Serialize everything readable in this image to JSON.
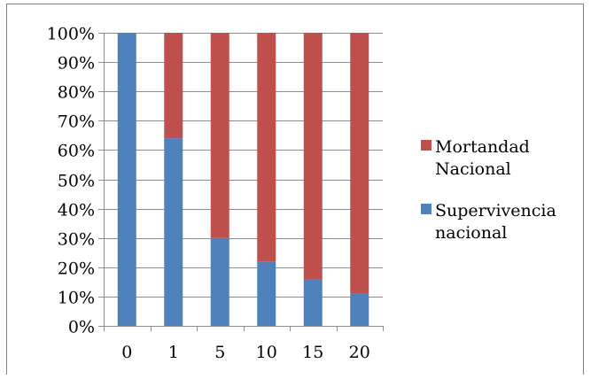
{
  "chart_data": {
    "type": "bar",
    "stacked": true,
    "percent_stacked": true,
    "categories": [
      "0",
      "1",
      "5",
      "10",
      "15",
      "20"
    ],
    "series": [
      {
        "name": "Supervivencia nacional",
        "legend_lines": [
          "Supervivencia",
          "nacional"
        ],
        "color": "#4F81BD",
        "values": [
          100,
          64,
          30,
          22,
          16,
          11
        ]
      },
      {
        "name": "Mortandad Nacional",
        "legend_lines": [
          "Mortandad",
          "Nacional"
        ],
        "color": "#C0504D",
        "values": [
          0,
          36,
          70,
          78,
          84,
          89
        ]
      }
    ],
    "y_ticks": [
      "0%",
      "10%",
      "20%",
      "30%",
      "40%",
      "50%",
      "60%",
      "70%",
      "80%",
      "90%",
      "100%"
    ],
    "ylim": [
      0,
      100
    ],
    "grid": true,
    "legend_position": "right",
    "title": "",
    "xlabel": "",
    "ylabel": ""
  }
}
